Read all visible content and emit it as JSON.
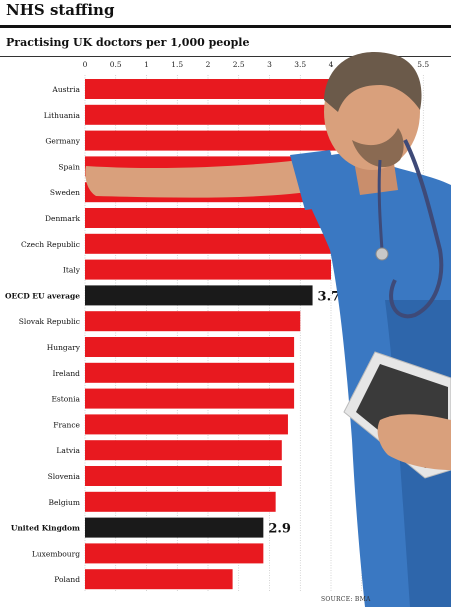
{
  "header": {
    "title": "NHS staffing",
    "subtitle": "Practising UK doctors per 1,000 people",
    "source": "SOURCE: BMA"
  },
  "colors": {
    "bar": "#e8191f",
    "highlight": "#1a1a1a",
    "scrubs": "#3a78c2",
    "skin": "#d9a07c"
  },
  "chart_data": {
    "type": "bar",
    "orientation": "horizontal",
    "title": "Practising UK doctors per 1,000 people",
    "xlim": [
      0,
      5.5
    ],
    "ticks": [
      "0",
      "0.5",
      "1",
      "1.5",
      "2",
      "2.5",
      "3",
      "3.5",
      "4",
      "4.5",
      "5",
      "5.5"
    ],
    "grid": true,
    "categories": [
      "Austria",
      "Lithuania",
      "Germany",
      "Spain",
      "Sweden",
      "Denmark",
      "Czech Republic",
      "Italy",
      "OECD EU average",
      "Slovak Republic",
      "Hungary",
      "Ireland",
      "Estonia",
      "France",
      "Latvia",
      "Slovenia",
      "Belgium",
      "United Kingdom",
      "Luxembourg",
      "Poland"
    ],
    "values": [
      5.2,
      4.3,
      4.1,
      3.9,
      4.2,
      4.2,
      4.1,
      4.0,
      3.7,
      3.5,
      3.4,
      3.4,
      3.4,
      3.3,
      3.2,
      3.2,
      3.1,
      2.9,
      2.9,
      2.4
    ],
    "highlighted": [
      "OECD EU average",
      "United Kingdom"
    ],
    "data_labels": {
      "OECD EU average": "3.7",
      "United Kingdom": "2.9"
    }
  }
}
